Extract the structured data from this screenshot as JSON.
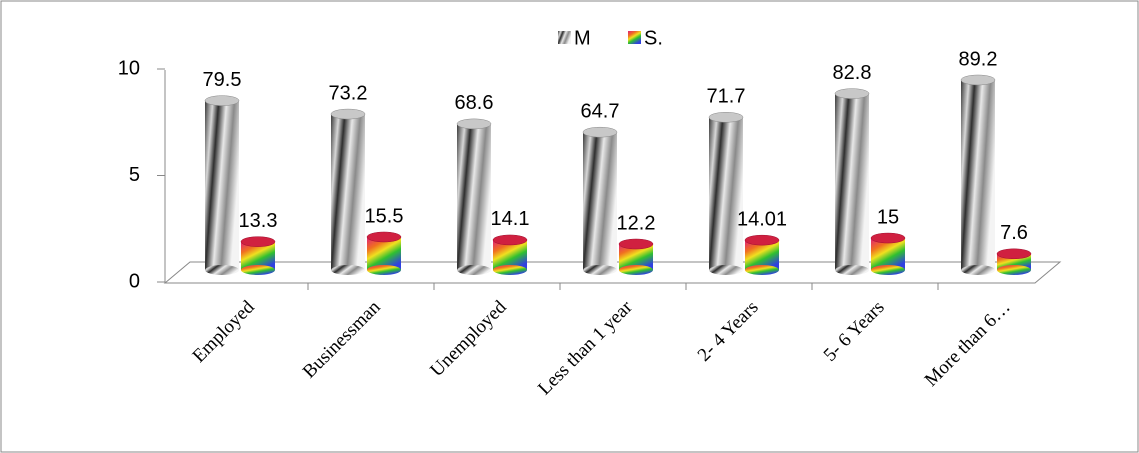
{
  "chart_data": {
    "type": "bar",
    "categories": [
      "Employed",
      "Businessman",
      "Unemployed",
      "Less than 1 year",
      "2- 4 Years",
      "5- 6 Years",
      "More than 6…"
    ],
    "series": [
      {
        "name": "M",
        "color": "#9a9a9a",
        "values": [
          7.95,
          7.32,
          6.86,
          6.47,
          7.17,
          8.28,
          8.92
        ],
        "value_labels": [
          "79.5",
          "73.2",
          "68.6",
          "64.7",
          "71.7",
          "82.8",
          "89.2"
        ]
      },
      {
        "name": "S.",
        "color": "#d0206a",
        "values": [
          1.33,
          1.55,
          1.41,
          1.22,
          1.401,
          1.5,
          0.76
        ],
        "value_labels": [
          "13.3",
          "15.5",
          "14.1",
          "12.2",
          "14.01",
          "15",
          "7.6"
        ]
      }
    ],
    "ylim": [
      0,
      10
    ],
    "yticks": [
      0,
      5,
      10
    ],
    "grid": false,
    "legend": "top"
  }
}
